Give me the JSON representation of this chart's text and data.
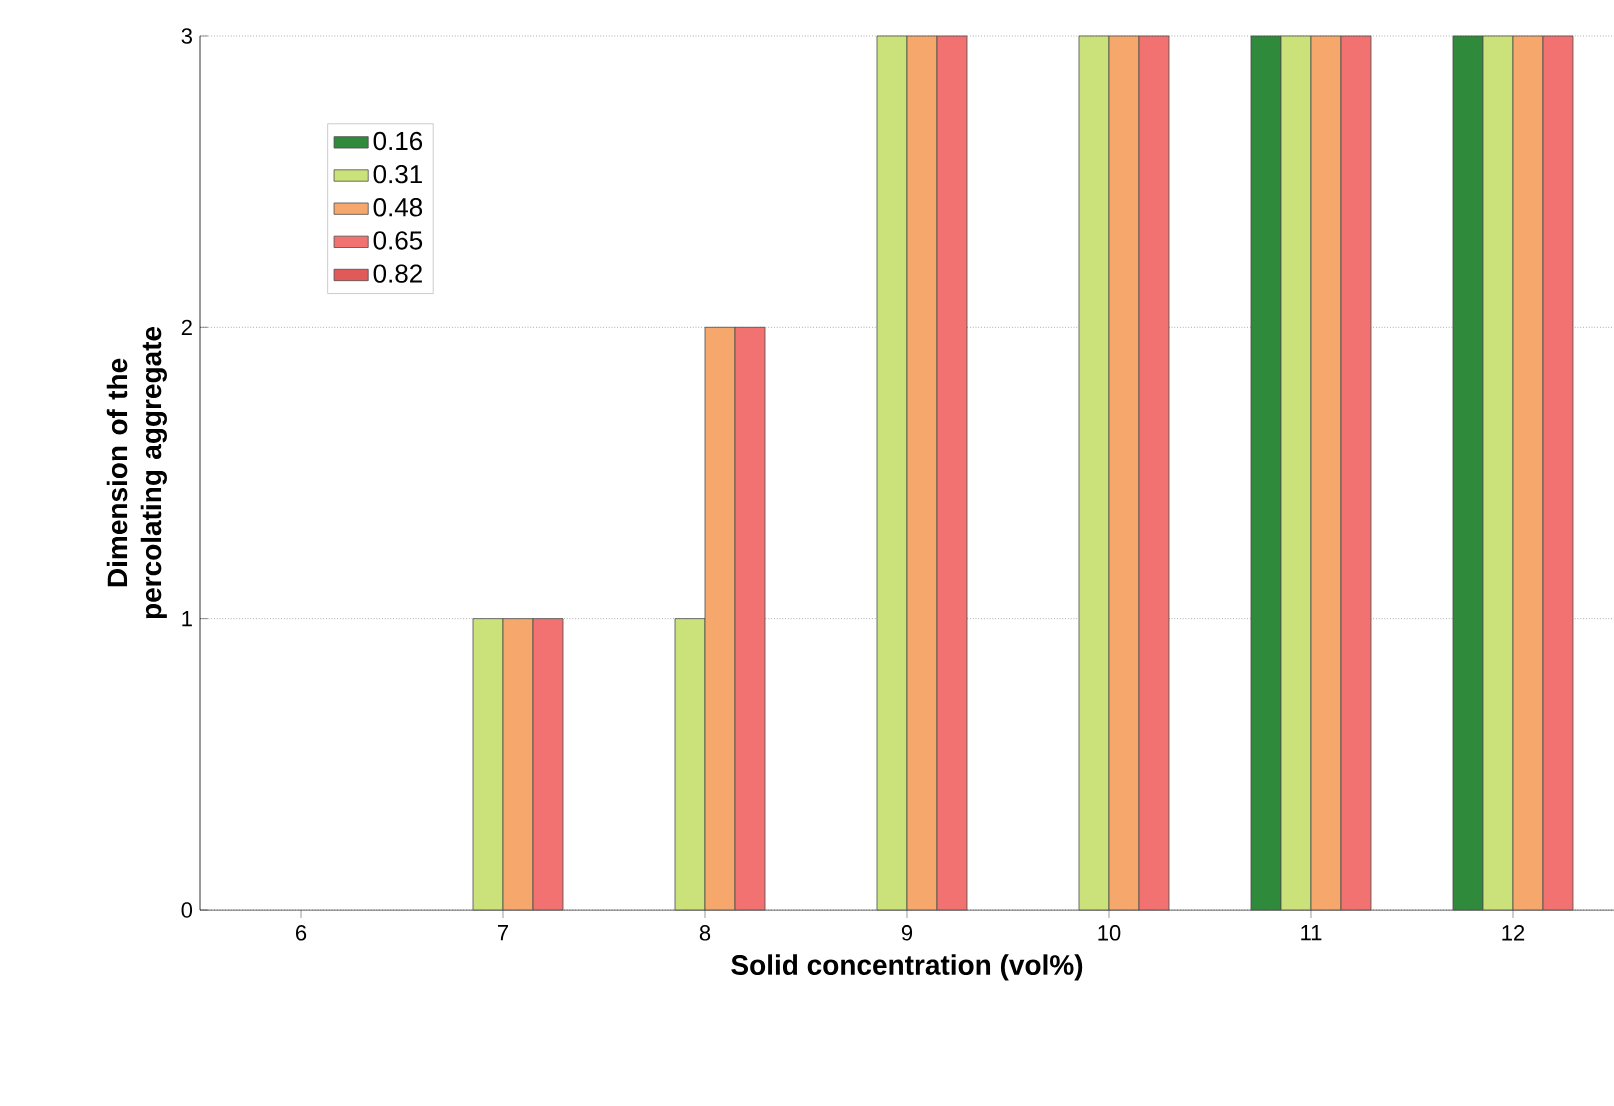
{
  "chart_data": {
    "type": "bar",
    "xlabel": "Solid concentration (vol%)",
    "ylabel": "Dimension of the percolating aggregate",
    "categories": [
      "6",
      "7",
      "8",
      "9",
      "10",
      "11",
      "12"
    ],
    "series": [
      {
        "name": "0.16",
        "color": "#2f8a3c",
        "values": [
          null,
          null,
          null,
          null,
          null,
          3,
          3
        ]
      },
      {
        "name": "0.31",
        "color": "#cbe27a",
        "values": [
          null,
          1,
          1,
          3,
          3,
          3,
          3
        ]
      },
      {
        "name": "0.48",
        "color": "#f6a86c",
        "values": [
          null,
          1,
          2,
          3,
          3,
          3,
          3
        ]
      },
      {
        "name": "0.65",
        "color": "#f27272",
        "values": [
          null,
          1,
          2,
          3,
          3,
          3,
          3
        ]
      },
      {
        "name": "0.82",
        "color": "#e05a5a",
        "values": [
          null,
          null,
          null,
          null,
          null,
          null,
          null
        ]
      }
    ],
    "ylim": [
      0,
      3
    ],
    "yticks": [
      0,
      1,
      2,
      3
    ],
    "grid": "y",
    "legend": "top left"
  }
}
